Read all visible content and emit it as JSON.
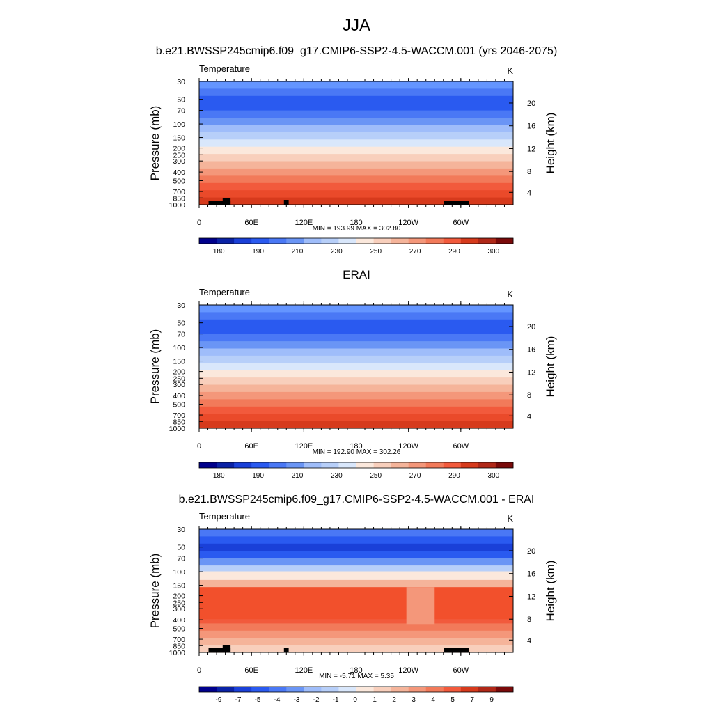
{
  "figure": {
    "title": "JJA"
  },
  "chart_data": [
    {
      "type": "heatmap",
      "title": "b.e21.BWSSP245cmip6.f09_g17.CMIP6-SSP2-4.5-WACCM.001 (yrs 2046-2075)",
      "left_label": "Temperature",
      "right_label": "K",
      "ylabel": "Pressure (mb)",
      "y2label": "Height (km)",
      "x_ticks": [
        "0",
        "60E",
        "120E",
        "180",
        "120W",
        "60W"
      ],
      "y_ticks": [
        "30",
        "50",
        "70",
        "100",
        "150",
        "200",
        "250",
        "300",
        "400",
        "500",
        "700",
        "850",
        "1000"
      ],
      "y2_ticks": [
        "20",
        "16",
        "12",
        "8",
        "4"
      ],
      "stats": "MIN = 193.99  MAX = 302.80",
      "colorbar_labels": [
        "180",
        "190",
        "210",
        "230",
        "250",
        "270",
        "290",
        "300"
      ],
      "bands_top_to_bottom": [
        "#6495ff",
        "#4a78f5",
        "#2a5af0",
        "#2a5af0",
        "#4a78f5",
        "#6a95f5",
        "#9fbdfa",
        "#b7cff9",
        "#d9e7fb",
        "#fbe8dc",
        "#f8cfbc",
        "#f5b49a",
        "#f4977a",
        "#f27a5a",
        "#f25a3c",
        "#ea4a2a",
        "#d63a1c"
      ],
      "has_topography": true
    },
    {
      "type": "heatmap",
      "title": "ERAI",
      "left_label": "Temperature",
      "right_label": "K",
      "ylabel": "Pressure (mb)",
      "y2label": "Height (km)",
      "x_ticks": [
        "0",
        "60E",
        "120E",
        "180",
        "120W",
        "60W"
      ],
      "y_ticks": [
        "30",
        "50",
        "70",
        "100",
        "150",
        "200",
        "250",
        "300",
        "400",
        "500",
        "700",
        "850",
        "1000"
      ],
      "y2_ticks": [
        "20",
        "16",
        "12",
        "8",
        "4"
      ],
      "stats": "MIN = 192.90  MAX = 302.26",
      "colorbar_labels": [
        "180",
        "190",
        "210",
        "230",
        "250",
        "270",
        "290",
        "300"
      ],
      "bands_top_to_bottom": [
        "#6495ff",
        "#4a78f5",
        "#2a5af0",
        "#2a5af0",
        "#4a78f5",
        "#6a95f5",
        "#9fbdfa",
        "#b7cff9",
        "#d9e7fb",
        "#fbe8dc",
        "#f8cfbc",
        "#f5b49a",
        "#f4977a",
        "#f27a5a",
        "#f25a3c",
        "#ea4a2a",
        "#d63a1c"
      ],
      "has_topography": false
    },
    {
      "type": "heatmap",
      "title": "b.e21.BWSSP245cmip6.f09_g17.CMIP6-SSP2-4.5-WACCM.001 - ERAI",
      "left_label": "Temperature",
      "right_label": "K",
      "ylabel": "Pressure (mb)",
      "y2label": "Height (km)",
      "x_ticks": [
        "0",
        "60E",
        "120E",
        "180",
        "120W",
        "60W"
      ],
      "y_ticks": [
        "30",
        "50",
        "70",
        "100",
        "150",
        "200",
        "250",
        "300",
        "400",
        "500",
        "700",
        "850",
        "1000"
      ],
      "y2_ticks": [
        "20",
        "16",
        "12",
        "8",
        "4"
      ],
      "stats": "MIN =  -5.71  MAX =   5.35",
      "colorbar_labels": [
        "-9",
        "-7",
        "-5",
        "-4",
        "-3",
        "-2",
        "-1",
        "0",
        "1",
        "2",
        "3",
        "4",
        "5",
        "7",
        "9"
      ],
      "bands_top_to_bottom": [
        "#4a78f5",
        "#2a5af0",
        "#1a40d8",
        "#2a5af0",
        "#6a95f5",
        "#b7cff9",
        "#fbe8dc",
        "#f5b49a",
        "#f4977a",
        "#f27a5a",
        "#f25a3c",
        "#f25a3c",
        "#f25a3c",
        "#f27a5a",
        "#f4977a",
        "#f5b49a",
        "#f8cfbc"
      ],
      "has_topography": true
    }
  ],
  "colorbar_colors": [
    "#00008c",
    "#0a22a6",
    "#1a40d8",
    "#2a5af0",
    "#4a78f5",
    "#6a95f5",
    "#9fbdfa",
    "#b7cff9",
    "#d9e7fb",
    "#fbe8dc",
    "#f8cfbc",
    "#f5b49a",
    "#f4977a",
    "#f27a5a",
    "#f25a3c",
    "#d63a1c",
    "#b02818",
    "#7a0a0a"
  ]
}
